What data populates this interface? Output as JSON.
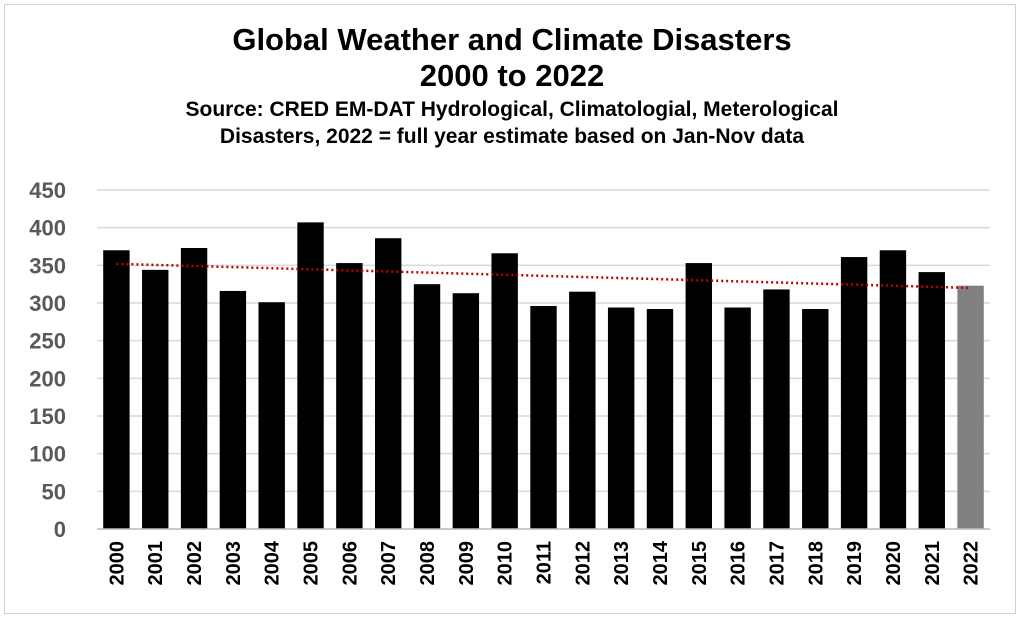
{
  "chart_data": {
    "type": "bar",
    "title": "Global Weather and Climate Disasters",
    "title_line2": "2000 to 2022",
    "subtitle_line1": "Source: CRED EM-DAT Hydrological, Climatologial, Meterological",
    "subtitle_line2": "Disasters, 2022 = full year estimate based on Jan-Nov data",
    "categories": [
      "2000",
      "2001",
      "2002",
      "2003",
      "2004",
      "2005",
      "2006",
      "2007",
      "2008",
      "2009",
      "2010",
      "2011",
      "2012",
      "2013",
      "2014",
      "2015",
      "2016",
      "2017",
      "2018",
      "2019",
      "2020",
      "2021",
      "2022"
    ],
    "values": [
      370,
      344,
      373,
      316,
      301,
      407,
      353,
      386,
      325,
      313,
      366,
      296,
      315,
      294,
      292,
      353,
      294,
      318,
      292,
      361,
      370,
      341,
      323
    ],
    "estimated_category": "2022",
    "ylim": [
      0,
      450
    ],
    "yticks": [
      0,
      50,
      100,
      150,
      200,
      250,
      300,
      350,
      400,
      450
    ],
    "grid": true,
    "legend": "none",
    "trendline": {
      "style": "dotted",
      "start_value": 352,
      "end_value": 320
    },
    "colors": {
      "bar": "#000000",
      "estimate_bar": "#808080",
      "trendline": "#c00000",
      "grid": "#d9d9d9",
      "ytick": "#595959"
    }
  }
}
